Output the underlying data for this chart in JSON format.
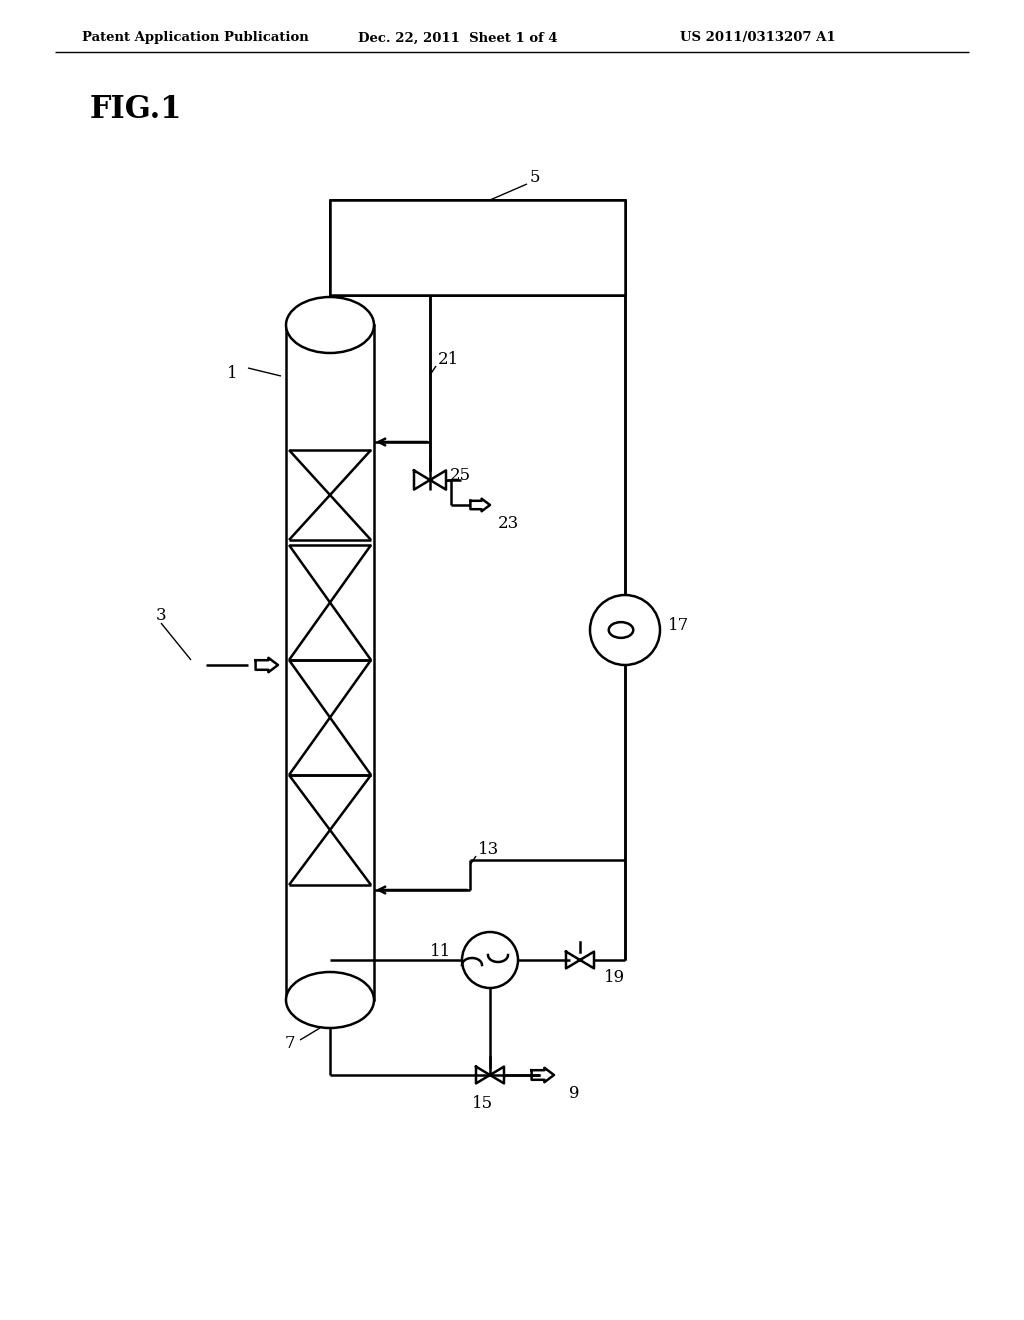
{
  "header_left": "Patent Application Publication",
  "header_mid": "Dec. 22, 2011  Sheet 1 of 4",
  "header_right": "US 2011/0313207 A1",
  "fig_label": "FIG.1",
  "bg_color": "#ffffff",
  "line_color": "#000000"
}
